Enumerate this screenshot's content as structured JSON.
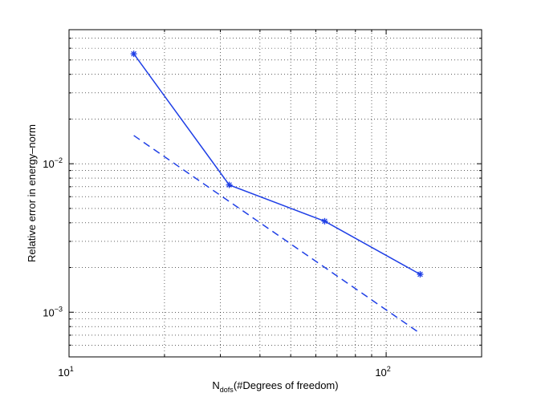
{
  "chart_data": {
    "type": "line",
    "title": "",
    "xscale": "log",
    "yscale": "log",
    "xlim": [
      10,
      200
    ],
    "ylim": [
      0.0005,
      0.08
    ],
    "grid": true,
    "xlabel": {
      "main": "N",
      "sub": "dofs",
      "rest": "(#Degrees of freedom)"
    },
    "ylabel": "Relative error in energy–norm",
    "xticks": [
      {
        "value": 10,
        "base": "10",
        "exp": "1"
      },
      {
        "value": 100,
        "base": "10",
        "exp": "2"
      }
    ],
    "yticks": [
      {
        "value": 0.001,
        "base": "10",
        "exp": "−3"
      },
      {
        "value": 0.01,
        "base": "10",
        "exp": "−2"
      }
    ],
    "series": [
      {
        "style": "solid",
        "marker": "asterisk",
        "color": "#1f3fe6",
        "x": [
          16,
          32,
          64,
          128
        ],
        "y": [
          0.055,
          0.0072,
          0.0041,
          0.0018
        ]
      },
      {
        "style": "dashed",
        "marker": "none",
        "color": "#1f3fe6",
        "x": [
          16,
          128
        ],
        "y": [
          0.0155,
          0.00072
        ]
      }
    ]
  }
}
